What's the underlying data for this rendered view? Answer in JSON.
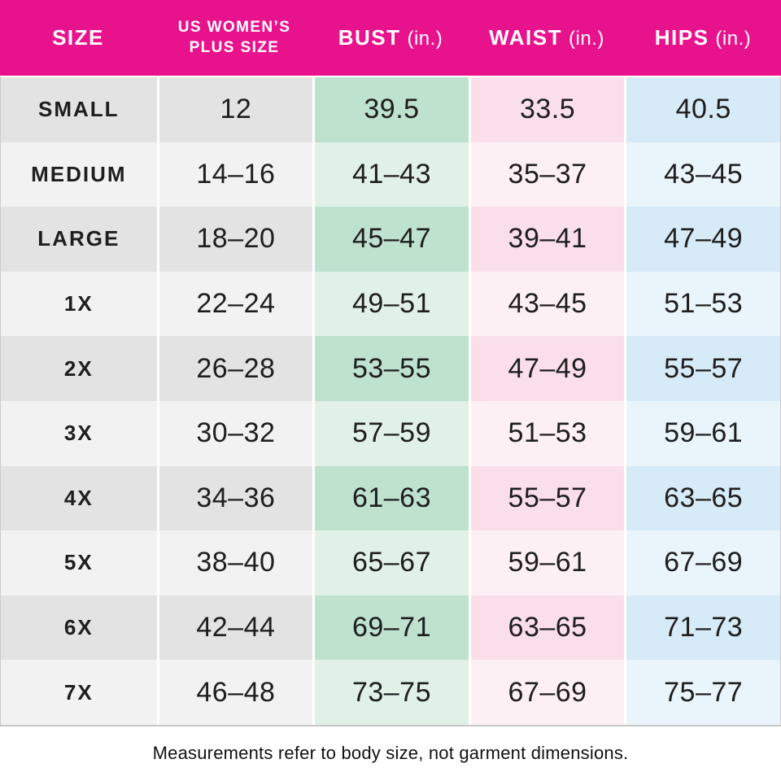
{
  "colors": {
    "header_bg": "#e9128d",
    "header_text": "#ffffff",
    "body_text": "#1e1e1e",
    "size_col_dark": "#e3e3e3",
    "size_col_light": "#f2f2f2",
    "bust_col_dark": "#bee2ce",
    "bust_col_light": "#e1f1e8",
    "waist_col_dark": "#fadfea",
    "waist_col_light": "#fdf0f5",
    "hips_col_dark": "#d6eaf7",
    "hips_col_light": "#eaf4fb"
  },
  "header": {
    "size": "SIZE",
    "plus_line1": "US WOMEN’S",
    "plus_line2": "PLUS SIZE",
    "bust": "BUST",
    "bust_unit": "(in.)",
    "waist": "WAIST",
    "waist_unit": "(in.)",
    "hips": "HIPS",
    "hips_unit": "(in.)"
  },
  "chart_data": {
    "type": "table",
    "columns": [
      "SIZE",
      "US WOMEN’S PLUS SIZE",
      "BUST (in.)",
      "WAIST (in.)",
      "HIPS (in.)"
    ],
    "rows": [
      [
        "SMALL",
        "12",
        "39.5",
        "33.5",
        "40.5"
      ],
      [
        "MEDIUM",
        "14–16",
        "41–43",
        "35–37",
        "43–45"
      ],
      [
        "LARGE",
        "18–20",
        "45–47",
        "39–41",
        "47–49"
      ],
      [
        "1X",
        "22–24",
        "49–51",
        "43–45",
        "51–53"
      ],
      [
        "2X",
        "26–28",
        "53–55",
        "47–49",
        "55–57"
      ],
      [
        "3X",
        "30–32",
        "57–59",
        "51–53",
        "59–61"
      ],
      [
        "4X",
        "34–36",
        "61–63",
        "55–57",
        "63–65"
      ],
      [
        "5X",
        "38–40",
        "65–67",
        "59–61",
        "67–69"
      ],
      [
        "6X",
        "42–44",
        "69–71",
        "63–65",
        "71–73"
      ],
      [
        "7X",
        "46–48",
        "73–75",
        "67–69",
        "75–77"
      ]
    ],
    "footnote": "Measurements refer to body size, not garment dimensions."
  }
}
